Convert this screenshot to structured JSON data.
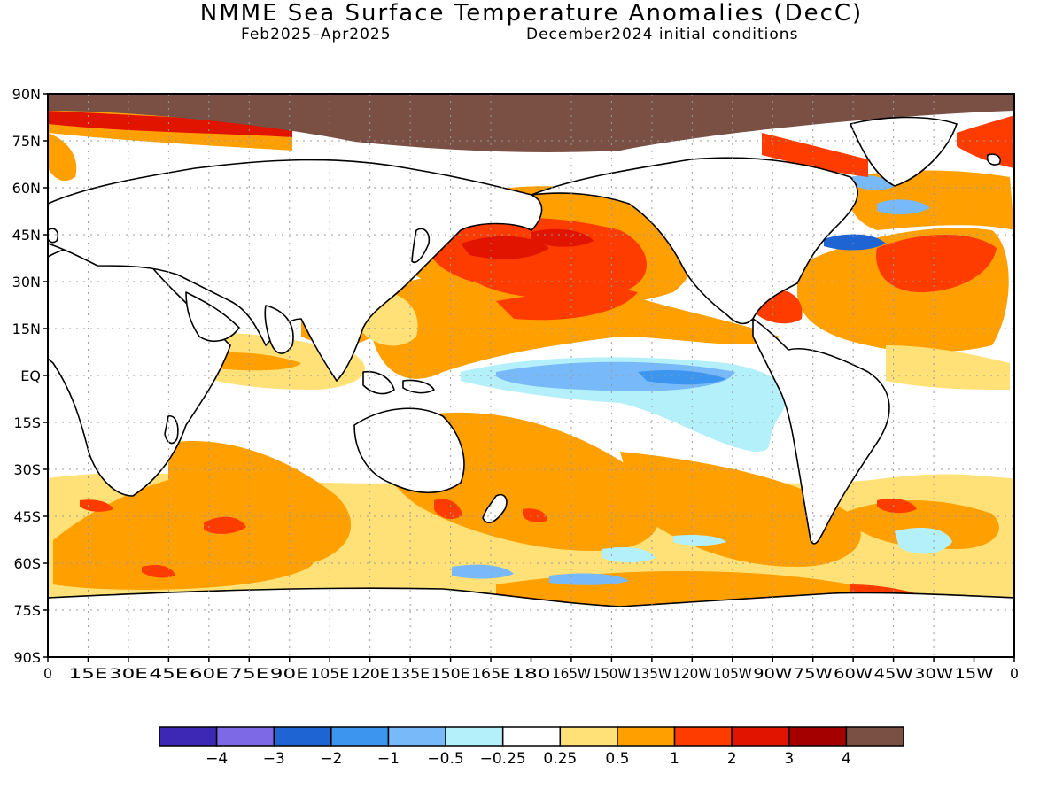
{
  "title": "NMME Sea Surface Temperature Anomalies (DecC)",
  "subtitle_left": "Feb2025–Apr2025",
  "subtitle_right": "December2024 initial conditions",
  "map": {
    "lat_labels": [
      "90N",
      "75N",
      "60N",
      "45N",
      "30N",
      "15N",
      "EQ",
      "15S",
      "30S",
      "45S",
      "60S",
      "75S",
      "90S"
    ],
    "lon_labels": [
      "0",
      "15E",
      "30E",
      "45E",
      "60E",
      "75E",
      "90E",
      "105E",
      "120E",
      "135E",
      "150E",
      "165E",
      "180",
      "165W",
      "150W",
      "135W",
      "120W",
      "105W",
      "90W",
      "75W",
      "60W",
      "45W",
      "30W",
      "15W",
      "0"
    ],
    "grid": "dotted"
  },
  "colorbar": {
    "colors": [
      "#3c28b4",
      "#7d69e6",
      "#1e64d2",
      "#3c96f0",
      "#78b9fa",
      "#b4f0fa",
      "#ffffff",
      "#ffe178",
      "#ffa000",
      "#ff3c00",
      "#e11400",
      "#a50000",
      "#7a4f44"
    ],
    "labels": [
      "−4",
      "−3",
      "−2",
      "−1",
      "−0.5",
      "−0.25",
      "0.25",
      "0.5",
      "1",
      "2",
      "3",
      "4"
    ]
  },
  "legend_colors": {
    "land": "#ffffff",
    "arctic_cap": "#7a4f44"
  }
}
